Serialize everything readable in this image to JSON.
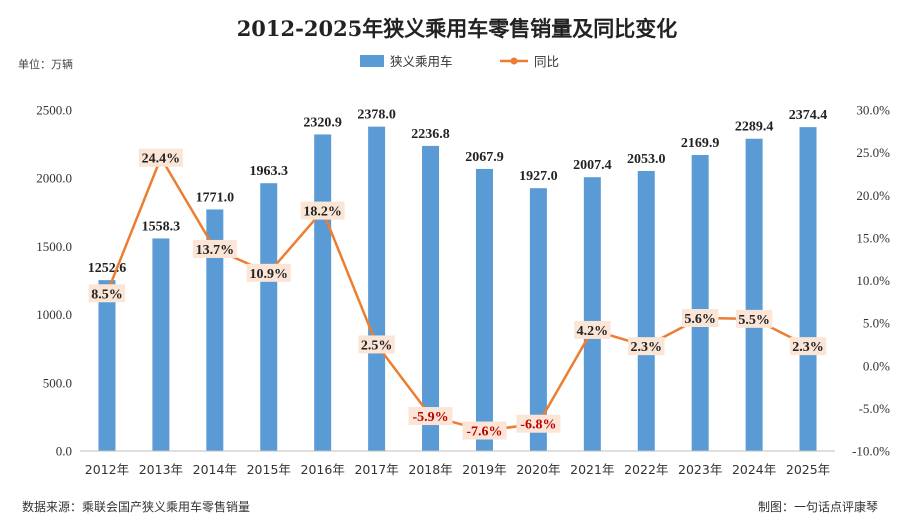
{
  "header": {
    "title": "2012-2025年狭义乘用车零售销量及同比变化",
    "unit": "单位：万辆"
  },
  "footer": {
    "source": "数据来源：乘联会国产狭义乘用车零售销量",
    "credit": "制图：一句话点评康琴"
  },
  "colors": {
    "bar": "#5b9bd5",
    "line": "#ed7d31",
    "label_bg": "#fbe5d6",
    "positive_text": "#222222",
    "negative_text": "#c00000"
  },
  "chart_data": {
    "type": "bar",
    "categories": [
      "2012年",
      "2013年",
      "2014年",
      "2015年",
      "2016年",
      "2017年",
      "2018年",
      "2019年",
      "2020年",
      "2021年",
      "2022年",
      "2023年",
      "2024年",
      "2025年"
    ],
    "series": [
      {
        "name": "狭义乘用车",
        "axis": "left",
        "values": [
          1252.6,
          1558.3,
          1771.0,
          1963.3,
          2320.9,
          2378.0,
          2236.8,
          2067.9,
          1927.0,
          2007.4,
          2053.0,
          2169.9,
          2289.4,
          2374.4
        ],
        "labels": [
          "1252.6",
          "1558.3",
          "1771.0",
          "1963.3",
          "2320.9",
          "2378.0",
          "2236.8",
          "2067.9",
          "1927.0",
          "2007.4",
          "2053.0",
          "2169.9",
          "2289.4",
          "2374.4"
        ]
      },
      {
        "name": "同比",
        "type": "line",
        "axis": "right",
        "values": [
          8.5,
          24.4,
          13.7,
          10.9,
          18.2,
          2.5,
          -5.9,
          -7.6,
          -6.8,
          4.2,
          2.3,
          5.6,
          5.5,
          2.3
        ],
        "labels": [
          "8.5%",
          "24.4%",
          "13.7%",
          "10.9%",
          "18.2%",
          "2.5%",
          "-5.9%",
          "-7.6%",
          "-6.8%",
          "4.2%",
          "2.3%",
          "5.6%",
          "5.5%",
          "2.3%"
        ]
      }
    ],
    "y_left": {
      "ylim": [
        0,
        2500
      ],
      "ticks": [
        0,
        500,
        1000,
        1500,
        2000,
        2500
      ],
      "tick_labels": [
        "0.0",
        "500.0",
        "1000.0",
        "1500.0",
        "2000.0",
        "2500.0"
      ]
    },
    "y_right": {
      "ylim": [
        -10,
        30
      ],
      "ticks": [
        -10,
        -5,
        0,
        5,
        10,
        15,
        20,
        25,
        30
      ],
      "tick_labels": [
        "-10.0%",
        "-5.0%",
        "0.0%",
        "5.0%",
        "10.0%",
        "15.0%",
        "20.0%",
        "25.0%",
        "30.0%"
      ]
    },
    "legend_position": "top-center",
    "grid": false
  }
}
